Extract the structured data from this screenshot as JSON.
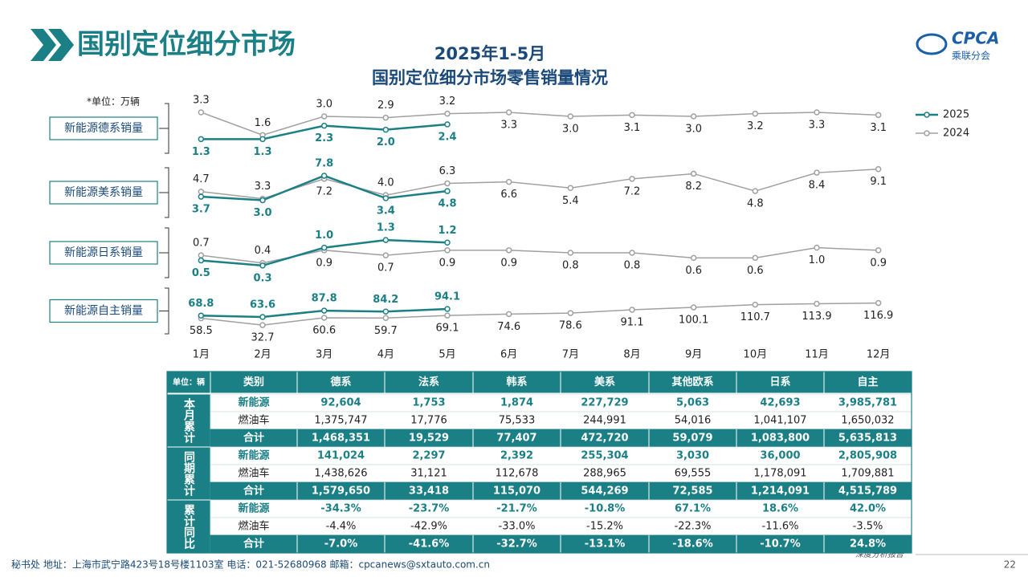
{
  "header": {
    "title": "国别定位细分市场",
    "logo": "CPCA",
    "logo_sub": "乘联分会"
  },
  "figure": {
    "title": "2025年1-5月",
    "subtitle": "国别定位细分市场零售销量情况",
    "unit": "*单位：万辆"
  },
  "chart_data": [
    {
      "type": "line",
      "title": "新能源德系销量",
      "categories": [
        "1月",
        "2月",
        "3月",
        "4月",
        "5月",
        "6月",
        "7月",
        "8月",
        "9月",
        "10月",
        "11月",
        "12月"
      ],
      "ylim": [
        0,
        4.2
      ],
      "series": [
        {
          "name": "2025",
          "color": "#1b7f86",
          "values": [
            1.3,
            1.3,
            2.3,
            2.0,
            2.4,
            null,
            null,
            null,
            null,
            null,
            null,
            null
          ],
          "value_labels": [
            "1.3",
            "1.3",
            "2.3",
            "2.0",
            "2.4",
            null,
            null,
            null,
            null,
            null,
            null,
            null
          ]
        },
        {
          "name": "2024",
          "color": "#a0a0a0",
          "values": [
            3.3,
            1.6,
            3.0,
            2.9,
            3.2,
            3.3,
            3.0,
            3.1,
            3.0,
            3.2,
            3.3,
            3.1
          ],
          "value_labels": [
            "3.3",
            "1.6",
            "3.0",
            "2.9",
            "3.2",
            "3.3",
            "3.0",
            "3.1",
            "3.0",
            "3.2",
            "3.3",
            "3.1"
          ]
        }
      ]
    },
    {
      "type": "line",
      "title": "新能源美系销量",
      "categories": [
        "1月",
        "2月",
        "3月",
        "4月",
        "5月",
        "6月",
        "7月",
        "8月",
        "9月",
        "10月",
        "11月",
        "12月"
      ],
      "ylim": [
        -1,
        10
      ],
      "series": [
        {
          "name": "2025",
          "color": "#1b7f86",
          "values": [
            3.7,
            3.0,
            7.8,
            3.4,
            4.8,
            null,
            null,
            null,
            null,
            null,
            null,
            null
          ],
          "value_labels": [
            "3.7",
            "3.0",
            "7.8",
            "3.4",
            "4.8",
            null,
            null,
            null,
            null,
            null,
            null,
            null
          ]
        },
        {
          "name": "2024",
          "color": "#a0a0a0",
          "values": [
            4.7,
            3.3,
            7.2,
            4.0,
            6.3,
            6.6,
            5.4,
            7.2,
            8.2,
            4.8,
            8.4,
            9.1
          ],
          "value_labels": [
            "4.7",
            "3.3",
            "7.2",
            "4.0",
            "6.3",
            "6.6",
            "5.4",
            "7.2",
            "8.2",
            "4.8",
            "8.4",
            "9.1"
          ]
        }
      ]
    },
    {
      "type": "line",
      "title": "新能源日系销量",
      "categories": [
        "1月",
        "2月",
        "3月",
        "4月",
        "5月",
        "6月",
        "7月",
        "8月",
        "9月",
        "10月",
        "11月",
        "12月"
      ],
      "ylim": [
        -0.3,
        1.9
      ],
      "series": [
        {
          "name": "2025",
          "color": "#1b7f86",
          "values": [
            0.5,
            0.3,
            1.0,
            1.3,
            1.2,
            null,
            null,
            null,
            null,
            null,
            null,
            null
          ],
          "value_labels": [
            "0.5",
            "0.3",
            "1.0",
            "1.3",
            "1.2",
            null,
            null,
            null,
            null,
            null,
            null,
            null
          ]
        },
        {
          "name": "2024",
          "color": "#a0a0a0",
          "values": [
            0.7,
            0.4,
            0.9,
            0.7,
            0.9,
            0.9,
            0.8,
            0.8,
            0.6,
            0.6,
            1.0,
            0.9
          ],
          "value_labels": [
            "0.7",
            "0.4",
            "0.9",
            "0.7",
            "0.9",
            "0.9",
            "0.8",
            "0.8",
            "0.6",
            "0.6",
            "1.0",
            "0.9"
          ]
        }
      ]
    },
    {
      "type": "line",
      "title": "新能源自主销量",
      "categories": [
        "1月",
        "2月",
        "3月",
        "4月",
        "5月",
        "6月",
        "7月",
        "8月",
        "9月",
        "10月",
        "11月",
        "12月"
      ],
      "ylim": [
        -13,
        186
      ],
      "series": [
        {
          "name": "2025",
          "color": "#1b7f86",
          "values": [
            68.8,
            63.6,
            87.8,
            84.2,
            94.1,
            null,
            null,
            null,
            null,
            null,
            null,
            null
          ],
          "value_labels": [
            "68.8",
            "63.6",
            "87.8",
            "84.2",
            "94.1",
            null,
            null,
            null,
            null,
            null,
            null,
            null
          ]
        },
        {
          "name": "2024",
          "color": "#a0a0a0",
          "values": [
            58.5,
            32.7,
            60.6,
            59.7,
            69.1,
            74.6,
            78.6,
            91.1,
            100.1,
            110.7,
            113.9,
            116.9
          ],
          "value_labels": [
            "58.5",
            "32.7",
            "60.6",
            "59.7",
            "69.1",
            "74.6",
            "78.6",
            "91.1",
            "100.1",
            "110.7",
            "113.9",
            "116.9"
          ]
        }
      ]
    }
  ],
  "table": {
    "header": [
      "单位：辆",
      "类别",
      "德系",
      "法系",
      "韩系",
      "美系",
      "其他欧系",
      "日系",
      "自主"
    ],
    "groups": [
      {
        "label": "本月累计",
        "rows": [
          {
            "type": "新能源",
            "cells": [
              "92,604",
              "1,753",
              "1,874",
              "227,729",
              "5,063",
              "42,693",
              "3,985,781"
            ]
          },
          {
            "type": "燃油车",
            "cells": [
              "1,375,747",
              "17,776",
              "75,533",
              "244,991",
              "54,016",
              "1,041,107",
              "1,650,032"
            ]
          },
          {
            "type": "合计",
            "cells": [
              "1,468,351",
              "19,529",
              "77,407",
              "472,720",
              "59,079",
              "1,083,800",
              "5,635,813"
            ]
          }
        ]
      },
      {
        "label": "同期累计",
        "rows": [
          {
            "type": "新能源",
            "cells": [
              "141,024",
              "2,297",
              "2,392",
              "255,304",
              "3,030",
              "36,000",
              "2,805,908"
            ]
          },
          {
            "type": "燃油车",
            "cells": [
              "1,438,626",
              "31,121",
              "112,678",
              "288,965",
              "69,555",
              "1,178,091",
              "1,709,881"
            ]
          },
          {
            "type": "合计",
            "cells": [
              "1,579,650",
              "33,418",
              "115,070",
              "544,269",
              "72,585",
              "1,214,091",
              "4,515,789"
            ]
          }
        ]
      },
      {
        "label": "累计同比",
        "rows": [
          {
            "type": "新能源",
            "cells": [
              "-34.3%",
              "-23.7%",
              "-21.7%",
              "-10.8%",
              "67.1%",
              "18.6%",
              "42.0%"
            ]
          },
          {
            "type": "燃油车",
            "cells": [
              "-4.4%",
              "-42.9%",
              "-33.0%",
              "-15.2%",
              "-22.3%",
              "-11.6%",
              "-3.5%"
            ]
          },
          {
            "type": "合计",
            "cells": [
              "-7.0%",
              "-41.6%",
              "-32.7%",
              "-13.1%",
              "-18.6%",
              "-10.7%",
              "24.8%"
            ]
          }
        ]
      }
    ]
  },
  "footer": {
    "contact": "秘书处   地址：上海市武宁路423号18号楼1103室  电话：021-52680968   邮箱：cpcanews@sxtauto.com.cn",
    "report": "深度分析报告",
    "page": "22"
  }
}
